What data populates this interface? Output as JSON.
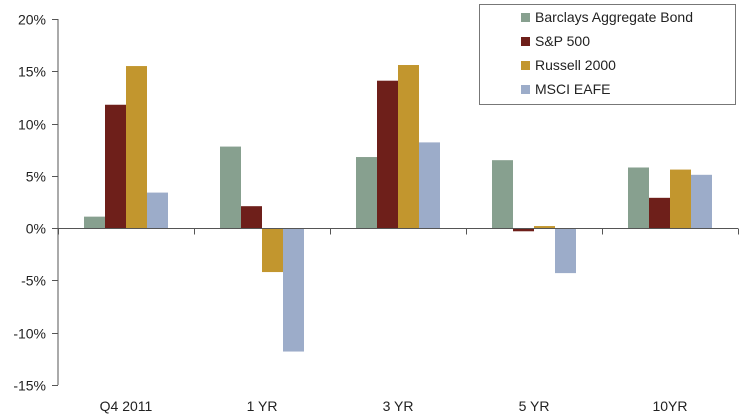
{
  "chart_data": {
    "type": "bar",
    "title": "",
    "xlabel": "",
    "ylabel": "",
    "categories": [
      "Q4 2011",
      "1 YR",
      "3 YR",
      "5 YR",
      "10YR"
    ],
    "ylim": [
      -15,
      20
    ],
    "yticks": [
      20,
      15,
      10,
      5,
      0,
      -5,
      -10,
      -15
    ],
    "ytick_labels": [
      "20%",
      "15%",
      "10%",
      "5%",
      "0%",
      "-5%",
      "-10%",
      "-15%"
    ],
    "grid": false,
    "legend_position": "top-right",
    "series": [
      {
        "name": "Barclays Aggregate Bond",
        "color": "#87a08f",
        "values": [
          1.1,
          7.8,
          6.8,
          6.5,
          5.8
        ]
      },
      {
        "name": "S&P 500",
        "color": "#6e1f1a",
        "values": [
          11.8,
          2.1,
          14.1,
          -0.3,
          2.9
        ]
      },
      {
        "name": "Russell 2000",
        "color": "#c2962e",
        "values": [
          15.5,
          -4.2,
          15.6,
          0.2,
          5.6
        ]
      },
      {
        "name": "MSCI EAFE",
        "color": "#9cacc9",
        "values": [
          3.4,
          -11.8,
          8.2,
          -4.3,
          5.1
        ]
      }
    ]
  }
}
